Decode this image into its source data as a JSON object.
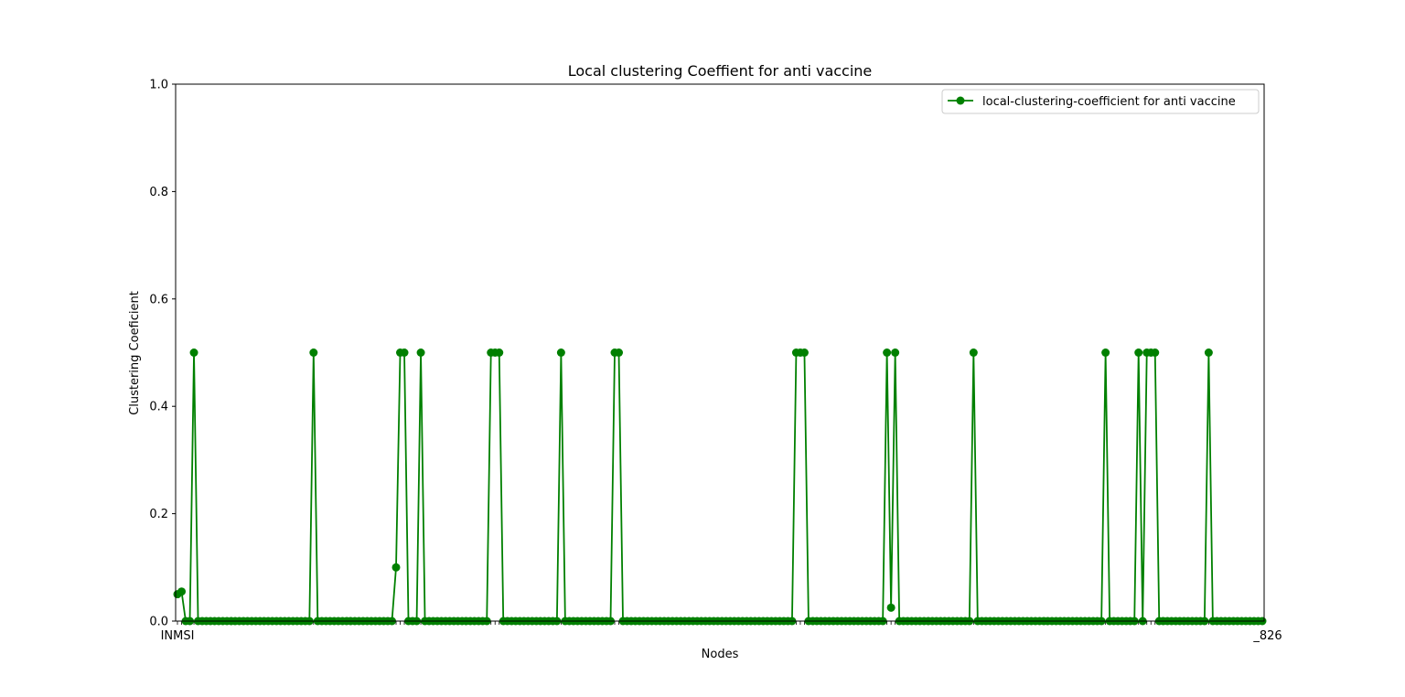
{
  "chart_data": {
    "type": "line",
    "title": "Local clustering Coeffient for anti vaccine",
    "xlabel": "Nodes",
    "ylabel": "Clustering Coeficient",
    "ylim": [
      0,
      1
    ],
    "yticks": [
      "0.0",
      "0.2",
      "0.4",
      "0.6",
      "0.8",
      "1.0"
    ],
    "ytick_values": [
      0,
      0.2,
      0.4,
      0.6,
      0.8,
      1.0
    ],
    "grid": false,
    "legend_position": "top-right",
    "color": "#008000",
    "marker": "circle",
    "node_count": 264,
    "x_tick_first": "INMSI",
    "x_tick_last": "_826",
    "series": [
      {
        "name": "local-clustering-coefficient for anti vaccine",
        "default_value": 0,
        "values_by_index": [
          [
            0,
            0.05
          ],
          [
            1,
            0.055
          ],
          [
            4,
            0.5
          ],
          [
            33,
            0.5
          ],
          [
            53,
            0.1
          ],
          [
            54,
            0.5
          ],
          [
            55,
            0.5
          ],
          [
            59,
            0.5
          ],
          [
            76,
            0.5
          ],
          [
            77,
            0.5
          ],
          [
            78,
            0.5
          ],
          [
            93,
            0.5
          ],
          [
            106,
            0.5
          ],
          [
            107,
            0.5
          ],
          [
            150,
            0.5
          ],
          [
            151,
            0.5
          ],
          [
            152,
            0.5
          ],
          [
            172,
            0.5
          ],
          [
            173,
            0.025
          ],
          [
            174,
            0.5
          ],
          [
            193,
            0.5
          ],
          [
            225,
            0.5
          ],
          [
            233,
            0.5
          ],
          [
            235,
            0.5
          ],
          [
            236,
            0.5
          ],
          [
            237,
            0.5
          ],
          [
            250,
            0.5
          ]
        ]
      }
    ]
  }
}
